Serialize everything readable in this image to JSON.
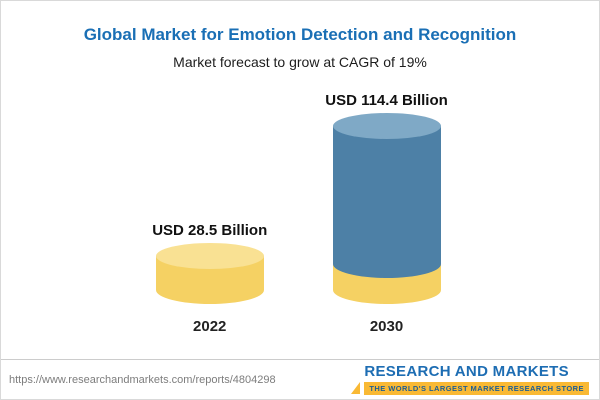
{
  "header": {
    "title": "Global Market for Emotion Detection and Recognition",
    "subtitle": "Market forecast to grow at CAGR of 19%"
  },
  "chart_data": {
    "type": "bar",
    "categories": [
      "2022",
      "2030"
    ],
    "values": [
      28.5,
      114.4
    ],
    "unit": "USD Billion",
    "value_labels": [
      "USD 28.5 Billion",
      "USD 114.4 Billion"
    ],
    "title": "Global Market for Emotion Detection and Recognition",
    "subtitle": "Market forecast to grow at CAGR of 19%",
    "cagr": "19%",
    "legend_position": "none",
    "grid": "off",
    "colors": {
      "bar_2022": "#f5d163",
      "bar_2022_top": "#f9e193",
      "bar_2030": "#4d80a6",
      "bar_2030_top": "#7fa9c6",
      "bar_2030_base": "#f5d163",
      "title_text": "#1a6fb5"
    }
  },
  "footer": {
    "url": "https://www.researchandmarkets.com/reports/4804298",
    "logo_title": "RESEARCH AND MARKETS",
    "logo_tagline": "THE WORLD'S LARGEST MARKET RESEARCH STORE"
  }
}
